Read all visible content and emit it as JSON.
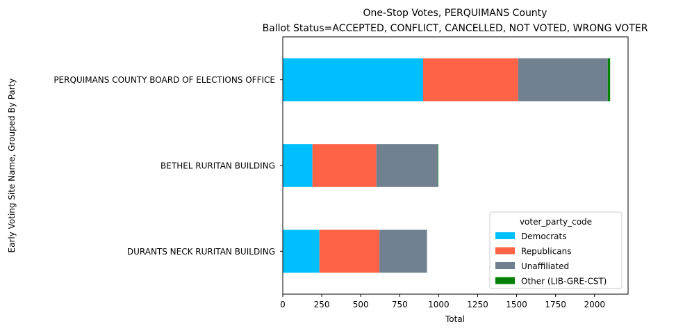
{
  "chart_data": {
    "type": "bar",
    "orientation": "horizontal",
    "stacked": true,
    "title": "One-Stop Votes, PERQUIMANS County",
    "subtitle": "Ballot Status=ACCEPTED, CONFLICT, CANCELLED, NOT VOTED, WRONG VOTER",
    "xlabel": "Total",
    "ylabel": "Early Voting Site Name, Grouped By Party",
    "xlim": [
      0,
      2215
    ],
    "xticks": [
      0,
      250,
      500,
      750,
      1000,
      1250,
      1500,
      1750,
      2000
    ],
    "categories": [
      "PERQUIMANS COUNTY BOARD OF ELECTIONS OFFICE",
      "BETHEL RURITAN BUILDING",
      "DURANTS NECK RURITAN BUILDING"
    ],
    "series": [
      {
        "name": "Democrats",
        "color": "#00bfff",
        "values": [
          900,
          190,
          235
        ]
      },
      {
        "name": "Republicans",
        "color": "#ff6347",
        "values": [
          610,
          410,
          385
        ]
      },
      {
        "name": "Unaffiliated",
        "color": "#708090",
        "values": [
          575,
          395,
          305
        ]
      },
      {
        "name": "Other (LIB-GRE-CST)",
        "color": "#008000",
        "values": [
          15,
          3,
          0
        ]
      }
    ],
    "legend": {
      "title": "voter_party_code",
      "placement": "lower right"
    },
    "grid": false
  }
}
